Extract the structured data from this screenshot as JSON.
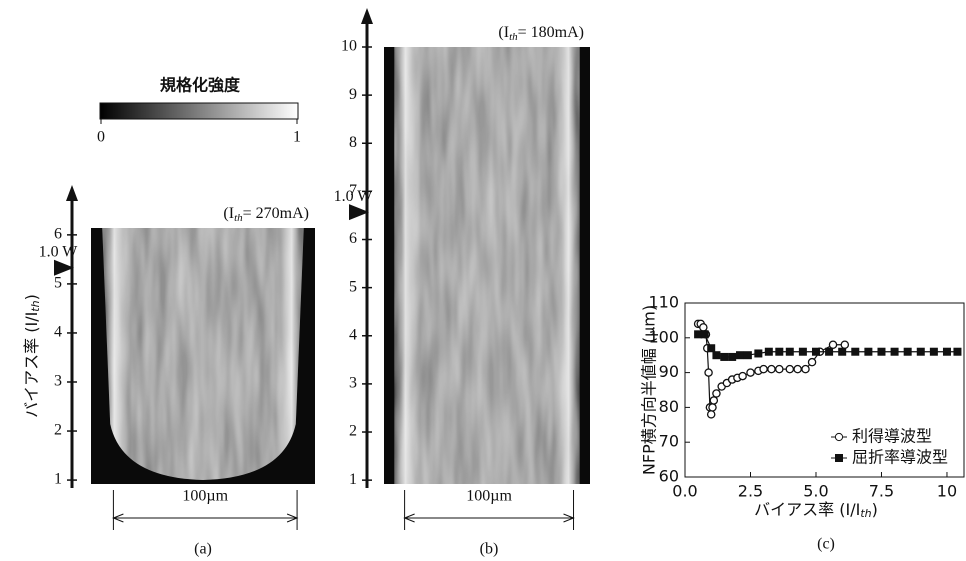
{
  "colorbar": {
    "title": "規格化強度",
    "ticks": [
      0,
      1
    ]
  },
  "chart_data": [
    {
      "type": "image",
      "label": "(a)",
      "annotation": [
        "(I",
        "th",
        "= 270mA)"
      ],
      "y_label": [
        "バイアス率 (I/I",
        "th",
        ")"
      ],
      "ylim": [
        0.92,
        6.14
      ],
      "yticks": [
        1,
        2,
        3,
        4,
        5,
        6
      ],
      "marker": {
        "value": 5.33,
        "label": "1.0 W"
      },
      "scale_label": "100µm",
      "shape": "u"
    },
    {
      "type": "image",
      "label": "(b)",
      "annotation": [
        "(I",
        "th",
        "= 180mA)"
      ],
      "ylim": [
        0.92,
        10.0
      ],
      "yticks": [
        1,
        2,
        3,
        4,
        5,
        6,
        7,
        8,
        9,
        10
      ],
      "marker": {
        "value": 6.57,
        "label": "1.0 W"
      },
      "scale_label": "100µm",
      "shape": "straight"
    },
    {
      "type": "line",
      "label": "(c)",
      "x_label": [
        "バイアス率 (I/I",
        "th",
        ")"
      ],
      "y_label": "NFP横方向半値幅 (µm)",
      "xlim": [
        0,
        10.65
      ],
      "xticks": [
        {
          "value": 0,
          "label": "0.0"
        },
        2.5,
        {
          "value": 5,
          "label": "5.0"
        },
        7.5,
        10
      ],
      "ylim": [
        60,
        110
      ],
      "yticks": [
        60,
        70,
        80,
        90,
        100,
        110
      ],
      "legend": "lower right",
      "series": [
        {
          "name": "利得導波型",
          "marker": "open-circle",
          "color": "#111111",
          "x": [
            0.5,
            0.6,
            0.7,
            0.8,
            0.85,
            0.9,
            0.95,
            1.0,
            1.05,
            1.1,
            1.2,
            1.4,
            1.6,
            1.8,
            2.0,
            2.2,
            2.5,
            2.8,
            3.0,
            3.3,
            3.6,
            4.0,
            4.3,
            4.6,
            4.85,
            5.15,
            5.65,
            6.1
          ],
          "values": [
            104,
            104,
            103,
            101,
            97,
            90,
            80,
            78,
            80,
            82,
            84,
            86,
            87,
            88,
            88.5,
            89,
            90,
            90.5,
            91,
            91,
            91,
            91,
            91,
            91,
            93,
            96,
            98,
            98
          ]
        },
        {
          "name": "屈折率導波型",
          "marker": "filled-square",
          "color": "#111111",
          "x": [
            0.5,
            0.75,
            1.0,
            1.2,
            1.5,
            1.8,
            2.1,
            2.4,
            2.8,
            3.2,
            3.6,
            4.0,
            4.5,
            5.0,
            5.5,
            6.0,
            6.5,
            7.0,
            7.5,
            8.0,
            8.5,
            9.0,
            9.5,
            10.0,
            10.4
          ],
          "values": [
            101,
            101,
            97,
            95,
            94.5,
            94.5,
            95,
            95,
            95.5,
            96,
            96,
            96,
            96,
            96,
            96,
            96,
            96,
            96,
            96,
            96,
            96,
            96,
            96,
            96,
            96
          ]
        }
      ]
    }
  ]
}
